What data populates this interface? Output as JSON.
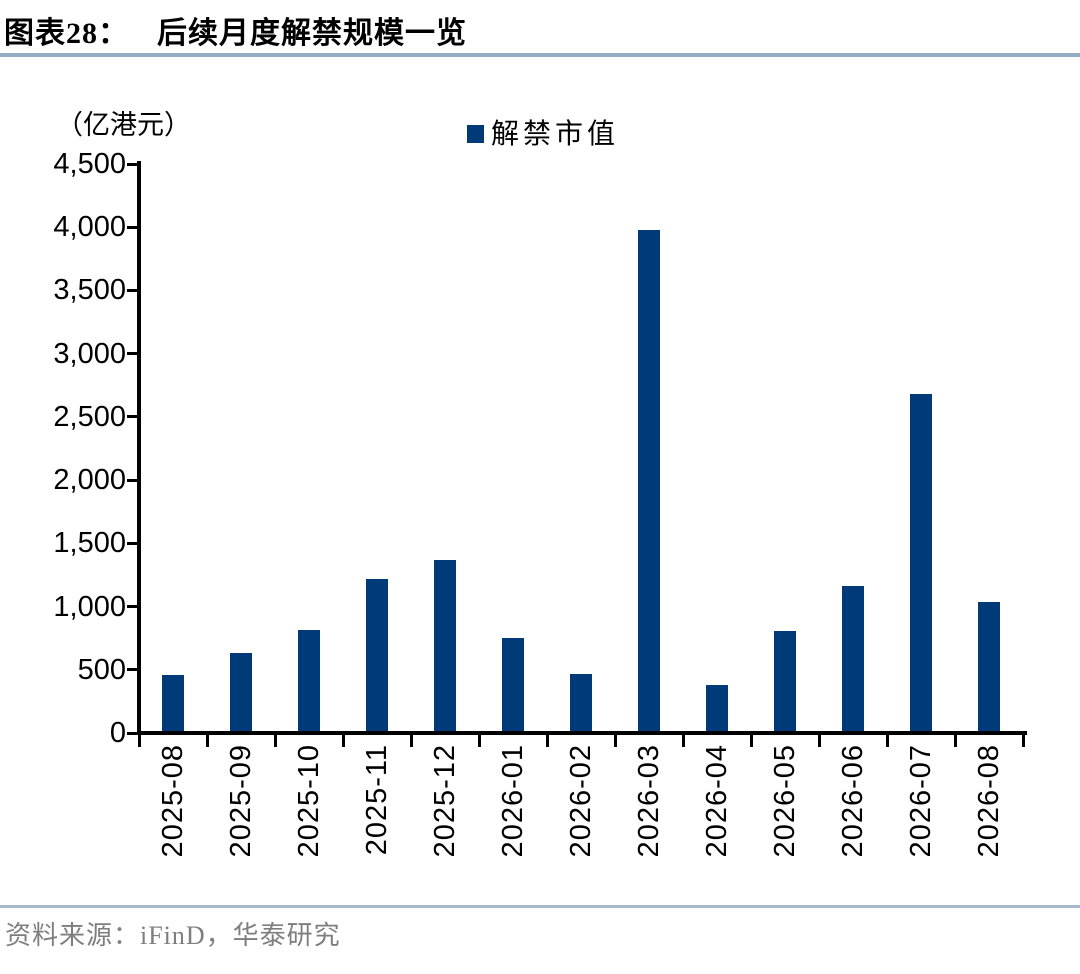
{
  "header": {
    "figure_label": "图表28：",
    "title": "后续月度解禁规模一览"
  },
  "chart_data": {
    "type": "bar",
    "title": "后续月度解禁规模一览",
    "unit_label": "（亿港元）",
    "legend_label": "解禁市值",
    "legend_position": "top",
    "grid": false,
    "categories": [
      "2025-08",
      "2025-09",
      "2025-10",
      "2025-11",
      "2025-12",
      "2026-01",
      "2026-02",
      "2026-03",
      "2026-04",
      "2026-05",
      "2026-06",
      "2026-07",
      "2026-08"
    ],
    "values": [
      460,
      630,
      815,
      1220,
      1365,
      750,
      465,
      3980,
      380,
      805,
      1165,
      2680,
      1035
    ],
    "xlabel": "",
    "ylabel": "（亿港元）",
    "ylim": [
      0,
      4500
    ],
    "ytick_interval": 500,
    "ytick_labels": [
      "0",
      "500",
      "1,000",
      "1,500",
      "2,000",
      "2,500",
      "3,000",
      "3,500",
      "4,000",
      "4,500"
    ],
    "bar_color": "#003a78"
  },
  "footer": {
    "source": "资料来源：iFinD，华泰研究"
  }
}
